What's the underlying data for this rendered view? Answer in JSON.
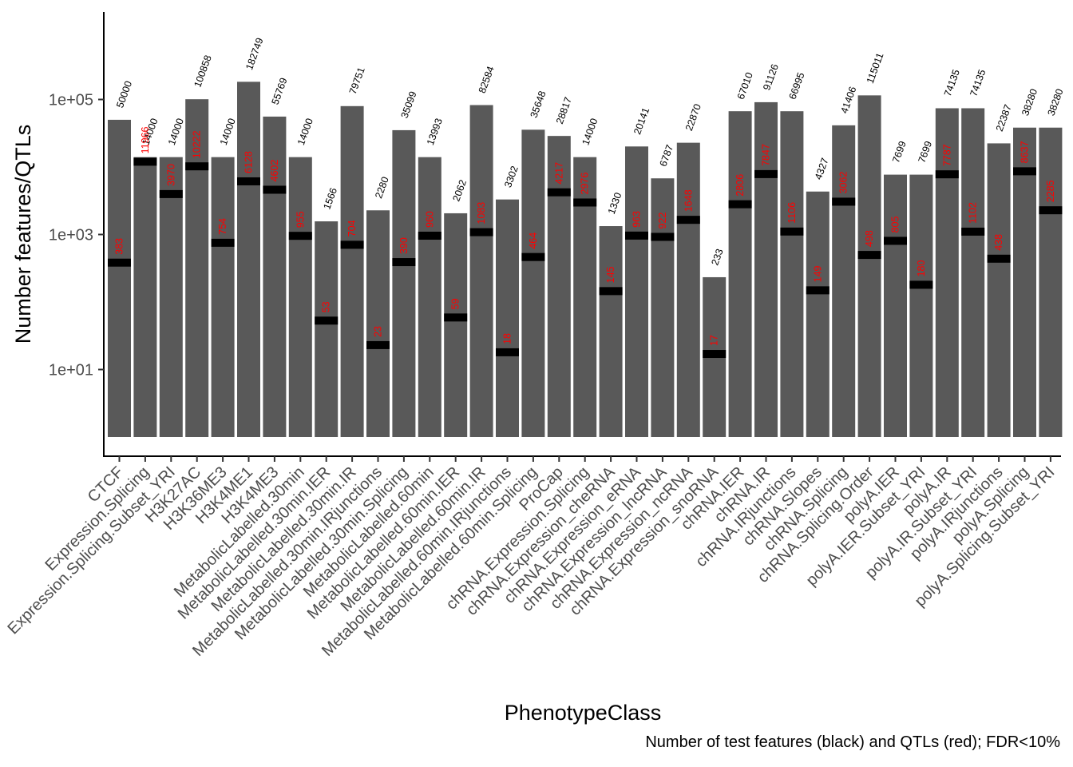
{
  "chart_data": {
    "type": "bar",
    "xlabel": "PhenotypeClass",
    "ylabel": "Number features/QTLs",
    "yscale": "log10",
    "ylim": [
      1,
      2000000
    ],
    "yticks": [
      {
        "value": 10,
        "label": "1e+01"
      },
      {
        "value": 1000,
        "label": "1e+03"
      },
      {
        "value": 100000,
        "label": "1e+05"
      }
    ],
    "caption": "Number of test features (black) and QTLs (red); FDR<10%",
    "colors": {
      "bar": "#595959",
      "marker": "#000000",
      "qtl_label": "#ff0000",
      "feature_label": "#000000"
    },
    "categories": [
      "CTCF",
      "Expression.Splicing",
      "Expression.Splicing.Subset_YRI",
      "H3K27AC",
      "H3K36ME3",
      "H3K4ME1",
      "H3K4ME3",
      "MetabolicLabelled.30min",
      "MetabolicLabelled.30min.IER",
      "MetabolicLabelled.30min.IR",
      "MetabolicLabelled.30min.IRjunctions",
      "MetabolicLabelled.30min.Splicing",
      "MetabolicLabelled.60min",
      "MetabolicLabelled.60min.IER",
      "MetabolicLabelled.60min.IR",
      "MetabolicLabelled.60min.IRjunctions",
      "MetabolicLabelled.60min.Splicing",
      "ProCap",
      "chRNA.Expression.Splicing",
      "chRNA.Expression_cheRNA",
      "chRNA.Expression_eRNA",
      "chRNA.Expression_lncRNA",
      "chRNA.Expression_ncRNA",
      "chRNA.Expression_snoRNA",
      "chRNA.IER",
      "chRNA.IR",
      "chRNA.IRjunctions",
      "chRNA.Slopes",
      "chRNA.Splicing",
      "chRNA.Splicing.Order",
      "polyA.IER",
      "polyA.IER.Subset_YRI",
      "polyA.IR",
      "polyA.IR.Subset_YRI",
      "polyA.IRjunctions",
      "polyA.Splicing",
      "polyA.Splicing.Subset_YRI"
    ],
    "series": [
      {
        "name": "test features",
        "values": [
          50000,
          14000,
          14000,
          100858,
          14000,
          182749,
          55769,
          14000,
          1566,
          79751,
          2280,
          35099,
          13993,
          2062,
          82584,
          3302,
          35648,
          28817,
          14000,
          1330,
          20141,
          6787,
          22870,
          233,
          67010,
          91126,
          66995,
          4327,
          41406,
          115011,
          7699,
          7699,
          74135,
          74135,
          22387,
          38280,
          38280
        ]
      },
      {
        "name": "QTLs",
        "values": [
          383,
          11966,
          3970,
          10222,
          754,
          6128,
          4602,
          955,
          53,
          704,
          23,
          390,
          960,
          59,
          1083,
          18,
          464,
          4217,
          2976,
          145,
          963,
          922,
          1648,
          17,
          2806,
          7847,
          1106,
          149,
          3062,
          498,
          805,
          180,
          7787,
          1102,
          438,
          8637,
          2285
        ]
      }
    ]
  }
}
